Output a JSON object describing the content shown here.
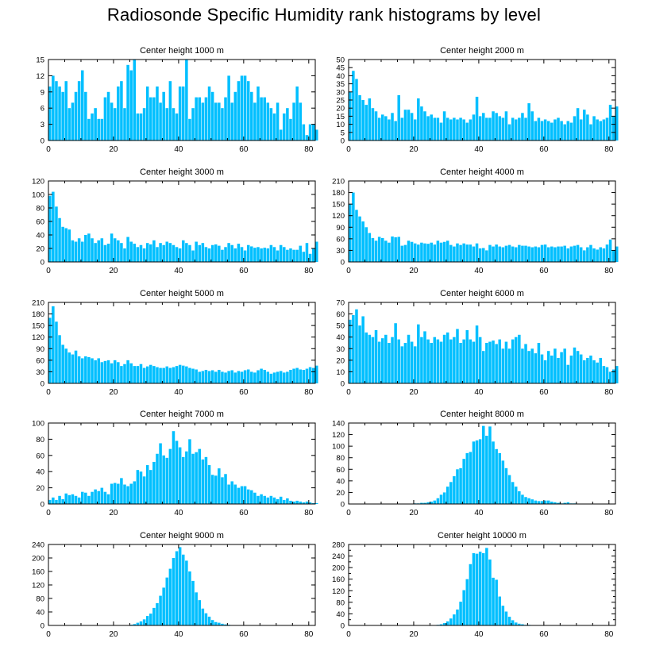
{
  "title": "Radiosonde Specific Humidity rank histograms by level",
  "bar_color": "#00bfff",
  "chart_data": [
    {
      "type": "bar",
      "title": "Center height 1000 m",
      "xlim": [
        0,
        82
      ],
      "ylim": [
        0,
        15
      ],
      "xticks": [
        0,
        20,
        40,
        60,
        80
      ],
      "yticks": [
        0,
        3,
        6,
        9,
        12,
        15
      ],
      "values": [
        10,
        12,
        11,
        10,
        9,
        11,
        6,
        7,
        9,
        11,
        13,
        9,
        4,
        5,
        6,
        4,
        4,
        8,
        9,
        7,
        6,
        10,
        11,
        6,
        14,
        13,
        15,
        5,
        5,
        6,
        10,
        8,
        8,
        10,
        7,
        9,
        6,
        11,
        6,
        5,
        10,
        10,
        15,
        4,
        6,
        8,
        8,
        7,
        8,
        10,
        9,
        7,
        7,
        6,
        8,
        12,
        7,
        9,
        11,
        12,
        12,
        11,
        9,
        7,
        10,
        8,
        8,
        7,
        6,
        5,
        7,
        2,
        5,
        6,
        4,
        7,
        10,
        7,
        3,
        1,
        3,
        3,
        2
      ]
    },
    {
      "type": "bar",
      "title": "Center height 2000 m",
      "xlim": [
        0,
        82
      ],
      "ylim": [
        0,
        50
      ],
      "xticks": [
        0,
        20,
        40,
        60,
        80
      ],
      "yticks": [
        0,
        5,
        10,
        15,
        20,
        25,
        30,
        35,
        40,
        45,
        50
      ],
      "values": [
        30,
        43,
        38,
        28,
        25,
        22,
        26,
        20,
        18,
        14,
        16,
        15,
        13,
        17,
        12,
        28,
        14,
        19,
        19,
        17,
        13,
        26,
        21,
        18,
        15,
        16,
        14,
        14,
        11,
        18,
        14,
        13,
        14,
        13,
        14,
        13,
        11,
        13,
        16,
        27,
        15,
        17,
        14,
        14,
        18,
        17,
        15,
        14,
        18,
        10,
        14,
        13,
        14,
        17,
        14,
        23,
        18,
        12,
        14,
        12,
        13,
        12,
        11,
        13,
        14,
        12,
        10,
        12,
        11,
        15,
        20,
        13,
        19,
        16,
        10,
        15,
        13,
        12,
        13,
        14,
        22,
        15,
        21
      ]
    },
    {
      "type": "bar",
      "title": "Center height 3000 m",
      "xlim": [
        0,
        82
      ],
      "ylim": [
        0,
        120
      ],
      "xticks": [
        0,
        20,
        40,
        60,
        80
      ],
      "yticks": [
        0,
        20,
        40,
        60,
        80,
        100,
        120
      ],
      "values": [
        98,
        104,
        82,
        65,
        52,
        50,
        48,
        32,
        30,
        35,
        30,
        40,
        42,
        35,
        28,
        32,
        35,
        25,
        27,
        42,
        35,
        32,
        28,
        20,
        37,
        30,
        27,
        22,
        25,
        20,
        28,
        26,
        32,
        22,
        28,
        25,
        30,
        28,
        25,
        22,
        20,
        32,
        28,
        25,
        17,
        30,
        25,
        28,
        22,
        20,
        25,
        26,
        24,
        18,
        22,
        28,
        25,
        20,
        27,
        22,
        17,
        25,
        23,
        21,
        22,
        20,
        21,
        20,
        25,
        22,
        17,
        25,
        22,
        18,
        20,
        18,
        18,
        24,
        15,
        28,
        12,
        20,
        30
      ]
    },
    {
      "type": "bar",
      "title": "Center height 4000 m",
      "xlim": [
        0,
        82
      ],
      "ylim": [
        0,
        210
      ],
      "xticks": [
        0,
        20,
        40,
        60,
        80
      ],
      "yticks": [
        0,
        30,
        60,
        90,
        120,
        150,
        180,
        210
      ],
      "values": [
        150,
        180,
        135,
        118,
        105,
        90,
        75,
        62,
        55,
        65,
        62,
        55,
        50,
        66,
        64,
        65,
        42,
        44,
        55,
        52,
        48,
        45,
        50,
        48,
        47,
        50,
        45,
        55,
        50,
        52,
        55,
        44,
        40,
        48,
        44,
        48,
        45,
        45,
        40,
        48,
        35,
        36,
        30,
        44,
        40,
        45,
        40,
        38,
        42,
        44,
        40,
        38,
        44,
        42,
        42,
        40,
        38,
        40,
        38,
        44,
        45,
        38,
        40,
        38,
        40,
        40,
        42,
        35,
        40,
        42,
        44,
        38,
        30,
        38,
        44,
        35,
        32,
        38,
        35,
        45,
        58,
        30,
        40
      ]
    },
    {
      "type": "bar",
      "title": "Center height 5000 m",
      "xlim": [
        0,
        82
      ],
      "ylim": [
        0,
        210
      ],
      "xticks": [
        0,
        20,
        40,
        60,
        80
      ],
      "yticks": [
        0,
        30,
        60,
        90,
        120,
        150,
        180,
        210
      ],
      "values": [
        170,
        200,
        160,
        125,
        100,
        90,
        80,
        75,
        85,
        70,
        65,
        70,
        68,
        65,
        60,
        65,
        55,
        58,
        60,
        52,
        60,
        55,
        45,
        50,
        60,
        52,
        45,
        45,
        50,
        40,
        44,
        48,
        45,
        42,
        40,
        40,
        44,
        40,
        42,
        45,
        48,
        46,
        44,
        40,
        38,
        36,
        30,
        32,
        35,
        32,
        34,
        30,
        35,
        30,
        28,
        32,
        34,
        28,
        32,
        30,
        34,
        36,
        30,
        28,
        34,
        38,
        35,
        30,
        25,
        28,
        30,
        32,
        28,
        30,
        35,
        38,
        40,
        36,
        35,
        38,
        42,
        40,
        46
      ]
    },
    {
      "type": "bar",
      "title": "Center height 6000 m",
      "xlim": [
        0,
        82
      ],
      "ylim": [
        0,
        70
      ],
      "xticks": [
        0,
        20,
        40,
        60,
        80
      ],
      "yticks": [
        0,
        10,
        20,
        30,
        40,
        50,
        60,
        70
      ],
      "values": [
        55,
        59,
        64,
        50,
        58,
        44,
        42,
        40,
        46,
        36,
        39,
        42,
        35,
        40,
        52,
        38,
        32,
        35,
        42,
        36,
        32,
        51,
        40,
        45,
        38,
        35,
        40,
        38,
        36,
        42,
        44,
        38,
        40,
        47,
        35,
        38,
        46,
        38,
        36,
        50,
        40,
        28,
        35,
        36,
        37,
        34,
        38,
        30,
        36,
        30,
        38,
        40,
        42,
        30,
        34,
        28,
        30,
        26,
        35,
        25,
        20,
        28,
        24,
        30,
        22,
        27,
        30,
        16,
        24,
        31,
        28,
        25,
        20,
        22,
        24,
        20,
        18,
        22,
        15,
        14,
        10,
        12,
        15
      ]
    },
    {
      "type": "bar",
      "title": "Center height 7000 m",
      "xlim": [
        0,
        82
      ],
      "ylim": [
        0,
        100
      ],
      "xticks": [
        0,
        20,
        40,
        60,
        80
      ],
      "yticks": [
        0,
        20,
        40,
        60,
        80,
        100
      ],
      "values": [
        5,
        8,
        5,
        10,
        6,
        13,
        11,
        12,
        10,
        8,
        15,
        14,
        10,
        15,
        18,
        16,
        20,
        15,
        12,
        25,
        26,
        25,
        32,
        24,
        22,
        25,
        28,
        42,
        40,
        34,
        48,
        42,
        52,
        62,
        75,
        60,
        57,
        68,
        90,
        78,
        70,
        58,
        65,
        80,
        62,
        64,
        68,
        55,
        58,
        48,
        36,
        35,
        44,
        33,
        37,
        24,
        28,
        24,
        20,
        22,
        22,
        18,
        17,
        14,
        10,
        12,
        10,
        8,
        10,
        8,
        6,
        9,
        5,
        7,
        4,
        3,
        4,
        3,
        2,
        3,
        2,
        1,
        1
      ]
    },
    {
      "type": "bar",
      "title": "Center height 8000 m",
      "xlim": [
        0,
        82
      ],
      "ylim": [
        0,
        140
      ],
      "xticks": [
        0,
        20,
        40,
        60,
        80
      ],
      "yticks": [
        0,
        20,
        40,
        60,
        80,
        100,
        120,
        140
      ],
      "values": [
        0,
        0,
        0,
        0,
        0,
        0,
        0,
        0,
        0,
        0,
        0,
        0,
        0,
        0,
        0,
        0,
        0,
        0,
        0,
        0,
        1,
        1,
        2,
        2,
        3,
        4,
        6,
        10,
        16,
        20,
        30,
        38,
        48,
        60,
        62,
        78,
        88,
        90,
        108,
        110,
        112,
        135,
        118,
        134,
        108,
        95,
        88,
        75,
        62,
        50,
        38,
        30,
        22,
        16,
        12,
        10,
        8,
        6,
        5,
        5,
        6,
        6,
        4,
        3,
        2,
        1,
        2,
        3,
        1,
        1,
        0,
        0,
        0,
        0,
        0,
        0,
        0,
        0,
        0,
        0,
        0,
        0,
        0
      ]
    },
    {
      "type": "bar",
      "title": "Center height 9000 m",
      "xlim": [
        0,
        82
      ],
      "ylim": [
        0,
        240
      ],
      "xticks": [
        0,
        20,
        40,
        60,
        80
      ],
      "yticks": [
        0,
        40,
        80,
        120,
        160,
        200,
        240
      ],
      "values": [
        0,
        0,
        0,
        0,
        0,
        0,
        0,
        0,
        0,
        0,
        0,
        0,
        0,
        0,
        0,
        0,
        0,
        0,
        0,
        0,
        0,
        0,
        0,
        0,
        1,
        2,
        4,
        8,
        12,
        18,
        28,
        35,
        52,
        66,
        88,
        112,
        142,
        168,
        200,
        220,
        232,
        210,
        192,
        160,
        132,
        98,
        75,
        50,
        36,
        26,
        16,
        10,
        8,
        5,
        3,
        2,
        1,
        1,
        0,
        0,
        1,
        1,
        0,
        0,
        1,
        1,
        0,
        0,
        0,
        0,
        0,
        0,
        0,
        0,
        0,
        0,
        0,
        0,
        0,
        0,
        0,
        0,
        0
      ]
    },
    {
      "type": "bar",
      "title": "Center height 10000 m",
      "xlim": [
        0,
        82
      ],
      "ylim": [
        0,
        280
      ],
      "xticks": [
        0,
        20,
        40,
        60,
        80
      ],
      "yticks": [
        0,
        20,
        40,
        60,
        80,
        100,
        120,
        140,
        160,
        180,
        200,
        220,
        240,
        260,
        280
      ],
      "ytick_labels": [
        0,
        40,
        80,
        120,
        160,
        200,
        240,
        280
      ],
      "values": [
        0,
        0,
        0,
        0,
        0,
        0,
        0,
        0,
        0,
        0,
        0,
        0,
        0,
        0,
        0,
        0,
        0,
        0,
        0,
        0,
        0,
        0,
        0,
        0,
        0,
        0,
        1,
        2,
        4,
        8,
        14,
        24,
        38,
        55,
        82,
        122,
        160,
        212,
        250,
        248,
        255,
        250,
        268,
        228,
        165,
        158,
        100,
        68,
        48,
        30,
        18,
        10,
        6,
        4,
        2,
        2,
        1,
        1,
        0,
        1,
        0,
        0,
        0,
        0,
        0,
        0,
        0,
        0,
        0,
        0,
        0,
        0,
        0,
        0,
        0,
        0,
        0,
        0,
        0,
        0,
        0,
        0,
        0
      ]
    }
  ]
}
